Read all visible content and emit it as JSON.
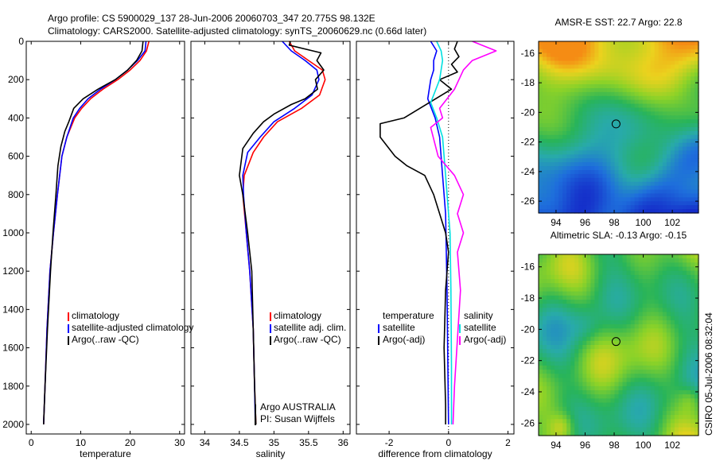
{
  "header": {
    "line1": "Argo profile: CS 5900029_137 28-Jun-2006 20060703_347 20.775S 98.132E",
    "line2": "Climatology: CARS2000. Satellite-adjusted climatology: synTS_20060629.nc (0.66d later)"
  },
  "side_label": "CSIRO 05-Jul-2006 08:32:04",
  "colors": {
    "red": "#ff0000",
    "blue": "#0000ff",
    "black": "#000000",
    "cyan": "#00e0e0",
    "magenta": "#ff00ff"
  },
  "chart_data": [
    {
      "type": "line",
      "xlabel": "temperature",
      "xlim": [
        -1,
        31
      ],
      "ylim": [
        0,
        2050
      ],
      "xticks": [
        "0",
        "10",
        "20",
        "30"
      ],
      "yticks": [
        "0",
        "200",
        "400",
        "600",
        "800",
        "1000",
        "1200",
        "1400",
        "1600",
        "1800",
        "2000"
      ],
      "legend": [
        "climatology",
        "satellite-adjusted climatology",
        "Argo(..raw -QC)"
      ],
      "series": [
        {
          "name": "climatology",
          "color": "red",
          "x": [
            23.8,
            23.3,
            22,
            20,
            17.5,
            14.5,
            12,
            10.2,
            8.8,
            7.2,
            6.2,
            5.3,
            4.5,
            3.8,
            3.2,
            2.8,
            2.5
          ],
          "y": [
            0,
            50,
            100,
            150,
            200,
            250,
            300,
            350,
            400,
            500,
            600,
            800,
            1000,
            1200,
            1500,
            1800,
            2000
          ]
        },
        {
          "name": "satellite-adjusted climatology",
          "color": "blue",
          "x": [
            23.2,
            23.0,
            21.5,
            19.5,
            17,
            14,
            11.5,
            9.8,
            8.5,
            7.2,
            6.2,
            5.3,
            4.5,
            3.8,
            3.2,
            2.8,
            2.5
          ],
          "y": [
            0,
            50,
            100,
            150,
            200,
            250,
            300,
            350,
            400,
            500,
            600,
            800,
            1000,
            1200,
            1500,
            1800,
            2000
          ]
        },
        {
          "name": "Argo(..raw -QC)",
          "color": "black",
          "x": [
            22.6,
            22.4,
            21.3,
            19.5,
            17,
            13.5,
            10.5,
            8.6,
            7.6,
            6.8,
            6.0,
            5.4,
            5.0,
            4.4,
            3.9,
            3.3,
            2.8,
            2.5
          ],
          "y": [
            0,
            50,
            100,
            150,
            200,
            250,
            300,
            350,
            420,
            470,
            550,
            650,
            800,
            1000,
            1200,
            1500,
            1800,
            2000
          ]
        }
      ]
    },
    {
      "type": "line",
      "xlabel": "salinity",
      "xlim": [
        33.8,
        36.1
      ],
      "ylim": [
        0,
        2050
      ],
      "xticks": [
        "34",
        "34.5",
        "35",
        "35.5",
        "36"
      ],
      "yticks": [],
      "legend": [
        "climatology",
        "satellite adj. clim.",
        "Argo(..raw -QC)"
      ],
      "annotations": [
        "Argo AUSTRALIA",
        "PI: Susan Wijffels"
      ],
      "series": [
        {
          "name": "climatology",
          "color": "red",
          "x": [
            35.22,
            35.3,
            35.5,
            35.7,
            35.74,
            35.66,
            35.4,
            35.05,
            34.85,
            34.7,
            34.57,
            34.55,
            34.6,
            34.65,
            34.7,
            34.72,
            34.74
          ],
          "y": [
            0,
            50,
            100,
            150,
            200,
            280,
            350,
            420,
            500,
            580,
            700,
            800,
            1000,
            1200,
            1500,
            1800,
            2000
          ]
        },
        {
          "name": "satellite adj. clim.",
          "color": "blue",
          "x": [
            35.12,
            35.25,
            35.45,
            35.62,
            35.65,
            35.55,
            35.3,
            35.0,
            34.8,
            34.62,
            34.55,
            34.56,
            34.6,
            34.65,
            34.7,
            34.72,
            34.73
          ],
          "y": [
            0,
            50,
            100,
            150,
            200,
            280,
            350,
            420,
            500,
            580,
            700,
            800,
            1000,
            1200,
            1500,
            1800,
            2000
          ]
        },
        {
          "name": "Argo(..raw -QC)",
          "color": "black",
          "x": [
            35.24,
            35.22,
            35.68,
            35.62,
            35.72,
            35.6,
            35.63,
            35.45,
            35.25,
            35.0,
            34.85,
            34.7,
            34.55,
            34.5,
            34.55,
            34.62,
            34.68,
            34.7,
            34.72,
            34.74
          ],
          "y": [
            0,
            20,
            60,
            100,
            150,
            200,
            250,
            300,
            330,
            380,
            420,
            480,
            560,
            700,
            800,
            1000,
            1200,
            1500,
            1800,
            2000
          ]
        }
      ]
    },
    {
      "type": "line",
      "xlabel": "difference from climatology",
      "xlim": [
        -3.1,
        2.2
      ],
      "ylim": [
        0,
        2050
      ],
      "xticks": [
        "-2",
        "0",
        "2"
      ],
      "yticks": [],
      "legend_left": [
        "temperature",
        "satellite",
        "Argo(-adj)"
      ],
      "legend_right": [
        "salinity",
        "satellite",
        "Argo(-adj)"
      ],
      "series": [
        {
          "name": "satellite",
          "group": "temperature",
          "color": "blue",
          "x": [
            -0.6,
            -0.4,
            -0.5,
            -0.5,
            -0.6,
            -0.7,
            -0.45,
            -0.3,
            -0.2,
            -0.1,
            -0.05,
            0
          ],
          "y": [
            0,
            50,
            100,
            150,
            200,
            300,
            400,
            500,
            700,
            900,
            1300,
            2000
          ]
        },
        {
          "name": "Argo(-adj)",
          "group": "temperature",
          "color": "black",
          "x": [
            0.3,
            0.2,
            0.35,
            0.1,
            0.3,
            -0.3,
            0.1,
            -1.5,
            -2.3,
            -2.3,
            -1.8,
            -1.4,
            -0.8,
            -0.5,
            -0.3,
            -0.1,
            0,
            -0.1,
            -0.15,
            -0.1,
            -0.1
          ],
          "y": [
            0,
            40,
            80,
            120,
            160,
            200,
            250,
            400,
            430,
            500,
            600,
            650,
            700,
            800,
            900,
            1000,
            1100,
            1300,
            1600,
            1900,
            2000
          ]
        },
        {
          "name": "satellite",
          "group": "salinity",
          "color": "cyan",
          "x": [
            -0.4,
            -0.25,
            -0.2,
            -0.3,
            -0.6,
            -0.4,
            -0.2,
            -0.1,
            0.05,
            0.08,
            0.1,
            0.1
          ],
          "y": [
            0,
            50,
            100,
            200,
            320,
            400,
            500,
            700,
            1000,
            1300,
            1700,
            2000
          ]
        },
        {
          "name": "Argo(-adj)",
          "group": "salinity",
          "color": "magenta",
          "x": [
            0.8,
            1.6,
            0.8,
            0.5,
            0.2,
            -0.3,
            -0.2,
            -0.6,
            -0.35,
            0.2,
            0.5,
            0.3,
            0.5,
            0.3,
            0.4,
            0.2,
            0.15
          ],
          "y": [
            0,
            50,
            100,
            150,
            250,
            350,
            400,
            450,
            600,
            700,
            800,
            900,
            1000,
            1100,
            1300,
            1800,
            2000
          ]
        }
      ]
    },
    {
      "type": "heatmap",
      "title": "AMSR-E SST: 22.7 Argo: 22.8",
      "xlim": [
        92.8,
        103.8
      ],
      "ylim": [
        -26.8,
        -15.2
      ],
      "xticks": [
        "94",
        "96",
        "98",
        "100",
        "102"
      ],
      "yticks": [
        "-16",
        "-18",
        "-20",
        "-22",
        "-24",
        "-26"
      ],
      "marker": {
        "lon": 98.13,
        "lat": -20.78
      }
    },
    {
      "type": "heatmap",
      "title": "Altimetric SLA: -0.13 Argo: -0.15",
      "xlim": [
        92.8,
        103.8
      ],
      "ylim": [
        -26.8,
        -15.2
      ],
      "xticks": [
        "94",
        "96",
        "98",
        "100",
        "102"
      ],
      "yticks": [
        "-16",
        "-18",
        "-20",
        "-22",
        "-24",
        "-26"
      ],
      "marker": {
        "lon": 98.13,
        "lat": -20.78
      }
    }
  ]
}
